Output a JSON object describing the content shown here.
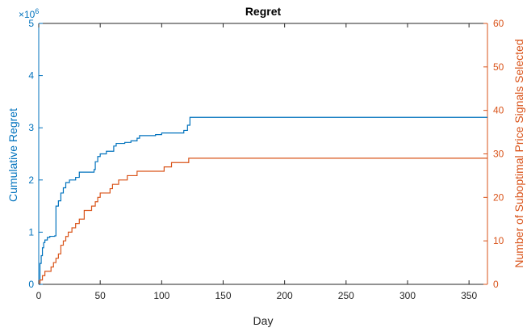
{
  "chart_data": {
    "type": "line",
    "title": "Regret",
    "xlabel": "Day",
    "xlim": [
      0,
      365
    ],
    "x_ticks": [
      0,
      50,
      100,
      150,
      200,
      250,
      300,
      350
    ],
    "y_left": {
      "label": "Cumulative Regret",
      "lim": [
        0,
        5
      ],
      "ticks": [
        0,
        1,
        2,
        3,
        4,
        5
      ],
      "multiplier": "×10",
      "exponent": "6",
      "color": "#0072BD"
    },
    "y_right": {
      "label": "Number of Suboptimal Price Signals Selected",
      "lim": [
        0,
        60
      ],
      "ticks": [
        0,
        10,
        20,
        30,
        40,
        50,
        60
      ],
      "color": "#D95319"
    },
    "grid": false,
    "legend": "none",
    "series": [
      {
        "axis": "left",
        "color": "#0072BD",
        "points": [
          [
            0,
            0
          ],
          [
            1,
            0.4
          ],
          [
            2,
            0.55
          ],
          [
            3,
            0.7
          ],
          [
            4,
            0.8
          ],
          [
            5,
            0.85
          ],
          [
            7,
            0.9
          ],
          [
            9,
            0.92
          ],
          [
            13,
            0.93
          ],
          [
            14,
            1.5
          ],
          [
            16,
            1.6
          ],
          [
            18,
            1.75
          ],
          [
            20,
            1.85
          ],
          [
            22,
            1.95
          ],
          [
            25,
            2.0
          ],
          [
            30,
            2.05
          ],
          [
            33,
            2.15
          ],
          [
            45,
            2.2
          ],
          [
            46,
            2.35
          ],
          [
            48,
            2.45
          ],
          [
            50,
            2.5
          ],
          [
            55,
            2.55
          ],
          [
            60,
            2.55
          ],
          [
            61,
            2.65
          ],
          [
            63,
            2.7
          ],
          [
            70,
            2.72
          ],
          [
            75,
            2.75
          ],
          [
            80,
            2.8
          ],
          [
            82,
            2.85
          ],
          [
            95,
            2.87
          ],
          [
            100,
            2.9
          ],
          [
            110,
            2.9
          ],
          [
            118,
            2.95
          ],
          [
            121,
            3.05
          ],
          [
            123,
            3.2
          ],
          [
            365,
            3.2
          ]
        ]
      },
      {
        "axis": "right",
        "color": "#D95319",
        "points": [
          [
            0,
            0
          ],
          [
            1,
            1
          ],
          [
            3,
            2
          ],
          [
            5,
            3
          ],
          [
            8,
            3
          ],
          [
            10,
            4
          ],
          [
            12,
            5
          ],
          [
            14,
            6
          ],
          [
            16,
            7
          ],
          [
            18,
            9
          ],
          [
            20,
            10
          ],
          [
            22,
            11
          ],
          [
            24,
            12
          ],
          [
            27,
            13
          ],
          [
            30,
            14
          ],
          [
            33,
            15
          ],
          [
            37,
            17
          ],
          [
            40,
            17
          ],
          [
            43,
            18
          ],
          [
            46,
            19
          ],
          [
            48,
            20
          ],
          [
            50,
            21
          ],
          [
            55,
            21
          ],
          [
            58,
            22
          ],
          [
            60,
            23
          ],
          [
            65,
            24
          ],
          [
            68,
            24
          ],
          [
            72,
            25
          ],
          [
            78,
            25
          ],
          [
            80,
            26
          ],
          [
            100,
            26
          ],
          [
            102,
            27
          ],
          [
            106,
            27
          ],
          [
            108,
            28
          ],
          [
            120,
            28
          ],
          [
            122,
            29
          ],
          [
            365,
            29
          ]
        ]
      }
    ]
  }
}
